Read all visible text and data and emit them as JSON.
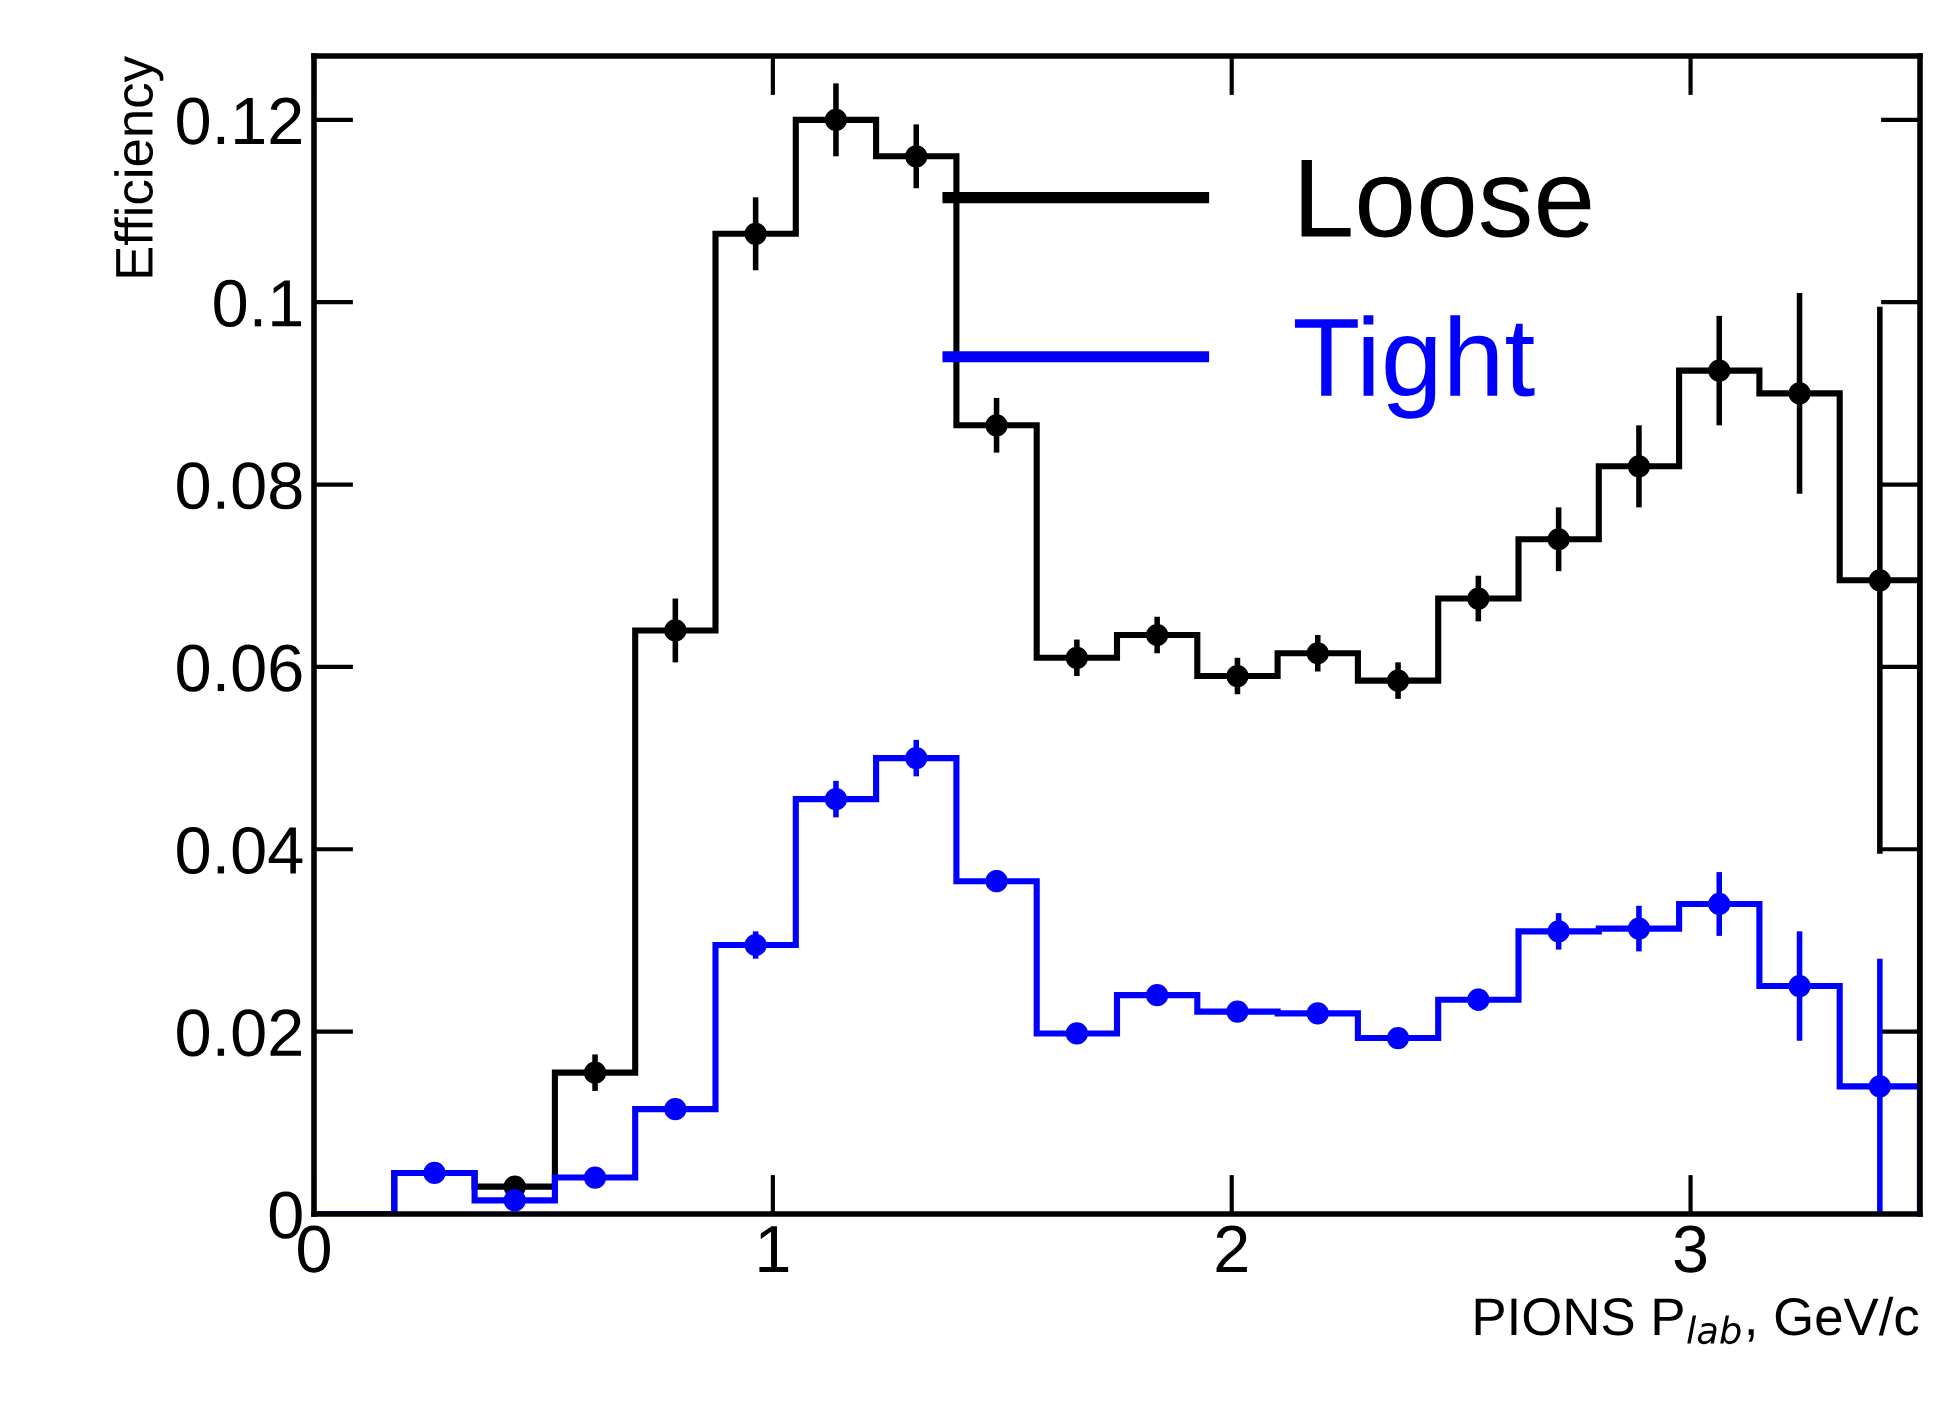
{
  "chart_data": {
    "type": "histogram",
    "xlabel": "PIONS P$_{lab}$, GeV/c",
    "ylabel": "Efficiency",
    "bins": [
      0,
      0.175,
      0.35,
      0.525,
      0.7,
      0.875,
      1.05,
      1.225,
      1.4,
      1.575,
      1.75,
      1.925,
      2.1,
      2.275,
      2.45,
      2.625,
      2.8,
      2.975,
      3.15,
      3.325,
      3.5
    ],
    "series": [
      {
        "name": "Loose",
        "color": "#000000",
        "values": [
          0,
          0.0045,
          0.003,
          0.0155,
          0.064,
          0.1075,
          0.12,
          0.116,
          0.0865,
          0.061,
          0.0635,
          0.059,
          0.0615,
          0.0585,
          0.0675,
          0.074,
          0.082,
          0.0925,
          0.09,
          0.0695
        ]
      },
      {
        "name": "Tight",
        "color": "#0000ff",
        "values": [
          0,
          0.0045,
          0.0015,
          0.004,
          0.0115,
          0.0295,
          0.0455,
          0.05,
          0.0365,
          0.0198,
          0.024,
          0.0222,
          0.022,
          0.0193,
          0.0235,
          0.031,
          0.0313,
          0.034,
          0.025,
          0.014
        ]
      },
      {
        "type": "scatter",
        "color": "#000000",
        "x": [
          0.4375,
          0.6125,
          0.7875,
          0.9625,
          1.1375,
          1.3125,
          1.4875,
          1.6625,
          1.8375,
          2.0125,
          2.1875,
          2.3625,
          2.5375,
          2.7125,
          2.8875,
          3.0625,
          3.2375,
          3.4125
        ],
        "values": [
          0.003,
          0.0155,
          0.064,
          0.1075,
          0.12,
          0.116,
          0.0865,
          0.061,
          0.0635,
          0.059,
          0.0615,
          0.0585,
          0.0675,
          0.074,
          0.082,
          0.0925,
          0.09,
          0.0695
        ],
        "errors": [
          0.001,
          0.002,
          0.0035,
          0.004,
          0.004,
          0.0035,
          0.003,
          0.002,
          0.002,
          0.002,
          0.002,
          0.002,
          0.0025,
          0.0035,
          0.0045,
          0.006,
          0.011,
          0.03
        ]
      },
      {
        "type": "scatter",
        "color": "#0000ff",
        "x": [
          0.2625,
          0.4375,
          0.6125,
          0.7875,
          0.9625,
          1.1375,
          1.3125,
          1.4875,
          1.6625,
          1.8375,
          2.0125,
          2.1875,
          2.3625,
          2.5375,
          2.7125,
          2.8875,
          3.0625,
          3.2375,
          3.4125
        ],
        "values": [
          0.0045,
          0.0015,
          0.004,
          0.0115,
          0.0295,
          0.0455,
          0.05,
          0.0365,
          0.0198,
          0.024,
          0.0222,
          0.022,
          0.0193,
          0.0235,
          0.031,
          0.0313,
          0.034,
          0.025,
          0.014
        ],
        "errors": [
          0.001,
          0.001,
          0.001,
          0.001,
          0.0015,
          0.002,
          0.002,
          0.0012,
          0.0008,
          0.0008,
          0.0008,
          0.0008,
          0.0008,
          0.0012,
          0.002,
          0.0025,
          0.0035,
          0.006,
          0.014
        ]
      }
    ],
    "xlim": [
      0,
      3.5
    ],
    "ylim": [
      0,
      0.127
    ],
    "xticks": [
      0,
      1,
      2,
      3
    ],
    "yticks": [
      0,
      0.02,
      0.04,
      0.06,
      0.08,
      0.1,
      0.12
    ],
    "marker": "circle",
    "legend": "top right",
    "grid": false
  }
}
